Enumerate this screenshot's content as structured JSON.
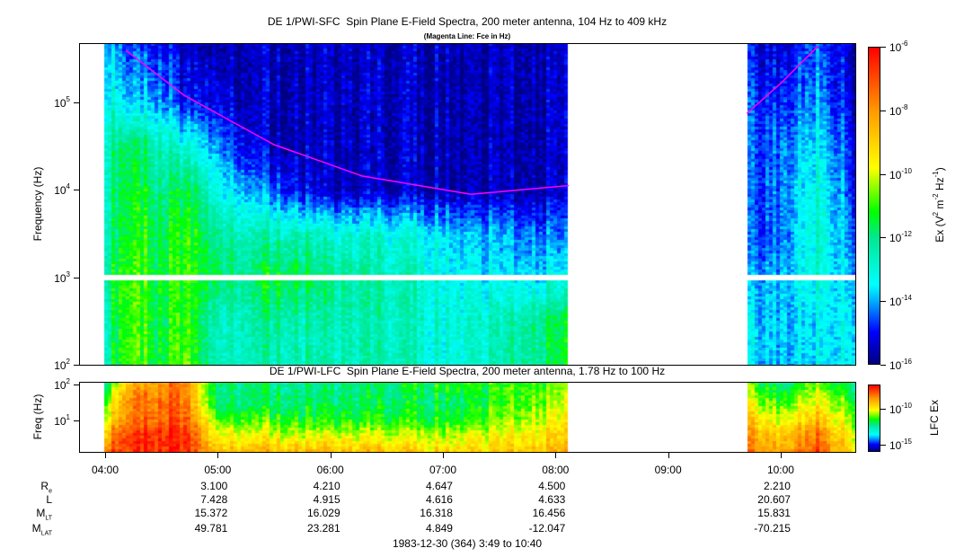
{
  "chart_data": [
    {
      "type": "heatmap",
      "title": "DE 1/PWI-SFC  Spin Plane E-Field Spectra, 200 meter antenna, 104 Hz to 409 kHz",
      "subtitle": "(Magenta Line: Fce in Hz)",
      "xlim": [
        "03:49",
        "10:40"
      ],
      "ylabel": "Frequency (Hz)",
      "yscale": "log",
      "ylim": [
        100,
        480000
      ],
      "yticks": [
        {
          "base": "10",
          "exp": "2",
          "value": 100
        },
        {
          "base": "10",
          "exp": "3",
          "value": 1000
        },
        {
          "base": "10",
          "exp": "4",
          "value": 10000
        },
        {
          "base": "10",
          "exp": "5",
          "value": 100000
        }
      ],
      "colorbar": {
        "label_parts": [
          {
            "t": "Ex (V"
          },
          {
            "sup": "2"
          },
          {
            "t": " m"
          },
          {
            "sup": "-2"
          },
          {
            "t": " Hz"
          },
          {
            "sup": "-1"
          },
          {
            "t": ")"
          }
        ],
        "scale": "log",
        "range_log10": [
          -16,
          -6
        ],
        "ticks": [
          {
            "base": "10",
            "exp": "-6",
            "value_log10": -6
          },
          {
            "base": "10",
            "exp": "-8",
            "value_log10": -8
          },
          {
            "base": "10",
            "exp": "-10",
            "value_log10": -10
          },
          {
            "base": "10",
            "exp": "-12",
            "value_log10": -12
          },
          {
            "base": "10",
            "exp": "-14",
            "value_log10": -14
          },
          {
            "base": "10",
            "exp": "-16",
            "value_log10": -16
          }
        ]
      },
      "data_segments": [
        [
          "04:00",
          "08:07"
        ],
        [
          "09:42",
          "10:40"
        ]
      ],
      "freq_gap_log10": [
        2.97,
        3.04
      ],
      "grid_log10_freq": [
        2,
        2.5,
        3,
        3.5,
        4,
        4.5,
        5,
        5.7
      ],
      "grid_columns": [
        {
          "t": "04:00",
          "v": [
            -12.5,
            -12.5,
            -12,
            -12.5,
            -12.5,
            -12.5,
            -13,
            -13.5
          ]
        },
        {
          "t": "04:12",
          "v": [
            -10.5,
            -10.5,
            -10.5,
            -11,
            -11,
            -11.5,
            -13.5,
            -14.5
          ]
        },
        {
          "t": "04:30",
          "v": [
            -11.5,
            -11.5,
            -11.5,
            -11.5,
            -12,
            -12.5,
            -14,
            -15
          ]
        },
        {
          "t": "04:42",
          "v": [
            -10.5,
            -11,
            -11,
            -11,
            -11.5,
            -13,
            -15,
            -15.5
          ]
        },
        {
          "t": "05:00",
          "v": [
            -12.5,
            -12.5,
            -11.5,
            -12,
            -13,
            -14,
            -15,
            -15.5
          ]
        },
        {
          "t": "05:15",
          "v": [
            -12.5,
            -12.5,
            -12,
            -12.5,
            -14,
            -15,
            -15.5,
            -15.5
          ]
        },
        {
          "t": "05:30",
          "v": [
            -12.5,
            -12,
            -11.3,
            -12.5,
            -14.5,
            -15.5,
            -15.5,
            -15.5
          ]
        },
        {
          "t": "05:45",
          "v": [
            -12.5,
            -12.5,
            -11.5,
            -12.5,
            -15,
            -15.5,
            -15.5,
            -15.5
          ]
        },
        {
          "t": "06:00",
          "v": [
            -12.5,
            -12.5,
            -12,
            -13,
            -15.5,
            -15.5,
            -15.5,
            -15.5
          ]
        },
        {
          "t": "06:30",
          "v": [
            -12.5,
            -12.5,
            -12.5,
            -13,
            -15.5,
            -15.5,
            -15.5,
            -15.5
          ]
        },
        {
          "t": "07:00",
          "v": [
            -13,
            -13,
            -13,
            -13.5,
            -15.5,
            -15.5,
            -15.5,
            -15.5
          ]
        },
        {
          "t": "07:30",
          "v": [
            -12.5,
            -12.5,
            -13.5,
            -14,
            -15.5,
            -15.5,
            -15.5,
            -15.5
          ]
        },
        {
          "t": "08:07",
          "v": [
            -11.5,
            -11.5,
            -13.5,
            -14.5,
            -15.5,
            -15.5,
            -15.5,
            -15.5
          ]
        },
        {
          "t": "09:42",
          "v": [
            -13.5,
            -13.5,
            -14,
            -14.5,
            -14.5,
            -14.5,
            -14.5,
            -15
          ]
        },
        {
          "t": "10:00",
          "v": [
            -14,
            -14,
            -14,
            -14.5,
            -14.5,
            -14.5,
            -15,
            -15.5
          ]
        },
        {
          "t": "10:20",
          "v": [
            -13.5,
            -13.5,
            -13,
            -12.8,
            -13,
            -13.5,
            -14,
            -14.5
          ]
        },
        {
          "t": "10:40",
          "v": [
            -13.5,
            -13.5,
            -14,
            -14.5,
            -15,
            -15,
            -15.5,
            -15.5
          ]
        }
      ],
      "fce_line": {
        "color": "#ff00ff",
        "segments": [
          [
            {
              "t": "04:11",
              "f": 395000
            },
            {
              "t": "04:42",
              "f": 121000
            },
            {
              "t": "05:30",
              "f": 32900
            },
            {
              "t": "06:17",
              "f": 14400
            },
            {
              "t": "07:15",
              "f": 8900
            },
            {
              "t": "08:07",
              "f": 11200
            }
          ],
          [
            {
              "t": "09:42",
              "f": 75000
            },
            {
              "t": "10:01",
              "f": 173000
            },
            {
              "t": "10:20",
              "f": 443000
            }
          ]
        ]
      }
    },
    {
      "type": "heatmap",
      "title": "DE 1/PWI-LFC  Spin Plane E-Field Spectra, 200 meter antenna, 1.78 Hz to 100 Hz",
      "xlim": [
        "03:49",
        "10:40"
      ],
      "ylabel": "Freq (Hz)",
      "yscale": "log",
      "ylim": [
        1.33,
        119
      ],
      "yticks": [
        {
          "base": "10",
          "exp": "1",
          "value": 10
        },
        {
          "base": "10",
          "exp": "2",
          "value": 100
        }
      ],
      "colorbar": {
        "label": "LFC Ex",
        "scale": "log",
        "range_log10": [
          -16,
          -6.6
        ],
        "ticks": [
          {
            "base": "10",
            "exp": "-10",
            "value_log10": -10
          },
          {
            "base": "10",
            "exp": "-15",
            "value_log10": -15
          }
        ]
      },
      "data_segments": [
        [
          "04:00",
          "08:07"
        ],
        [
          "09:42",
          "10:40"
        ]
      ],
      "grid_log10_freq": [
        0.12,
        0.6,
        1,
        1.5,
        2.08
      ],
      "grid_columns": [
        {
          "t": "04:00",
          "v": [
            -8,
            -9,
            -10,
            -11,
            -12
          ]
        },
        {
          "t": "04:12",
          "v": [
            -7,
            -7,
            -8,
            -8,
            -9
          ]
        },
        {
          "t": "04:42",
          "v": [
            -7,
            -7,
            -7.5,
            -8,
            -8
          ]
        },
        {
          "t": "05:00",
          "v": [
            -9,
            -10,
            -11,
            -12,
            -12
          ]
        },
        {
          "t": "06:00",
          "v": [
            -9,
            -10.5,
            -11.5,
            -12,
            -12.5
          ]
        },
        {
          "t": "07:00",
          "v": [
            -9.5,
            -10.5,
            -11.5,
            -12,
            -11.5
          ]
        },
        {
          "t": "08:07",
          "v": [
            -9,
            -9.5,
            -10,
            -10.5,
            -11
          ]
        },
        {
          "t": "09:42",
          "v": [
            -8,
            -8.5,
            -9,
            -10,
            -11
          ]
        },
        {
          "t": "10:00",
          "v": [
            -9,
            -9.5,
            -10.5,
            -11.5,
            -12.5
          ]
        },
        {
          "t": "10:20",
          "v": [
            -7.5,
            -8,
            -9,
            -10,
            -11
          ]
        },
        {
          "t": "10:40",
          "v": [
            -10,
            -10.5,
            -11,
            -11.5,
            -12.5
          ]
        }
      ]
    }
  ],
  "colormap": [
    [
      "0",
      "#000080"
    ],
    [
      "0.1",
      "#0000ff"
    ],
    [
      "0.2",
      "#00b0ff"
    ],
    [
      "0.25",
      "#00ffff"
    ],
    [
      "0.4",
      "#00e890"
    ],
    [
      "0.48",
      "#00ff00"
    ],
    [
      "0.62",
      "#ffff00"
    ],
    [
      "0.8",
      "#ff9900"
    ],
    [
      "1",
      "#ff0000"
    ]
  ],
  "time_axis": {
    "ticks": [
      "04:00",
      "05:00",
      "06:00",
      "07:00",
      "08:00",
      "09:00",
      "10:00"
    ]
  },
  "orbit_table": {
    "rows": [
      {
        "label": "R",
        "sub": "e",
        "values": {
          "05:00": "3.100",
          "06:00": "4.210",
          "07:00": "4.647",
          "08:00": "4.500",
          "10:00": "2.210"
        }
      },
      {
        "label": "L",
        "sub": "",
        "values": {
          "05:00": "7.428",
          "06:00": "4.915",
          "07:00": "4.616",
          "08:00": "4.633",
          "10:00": "20.607"
        }
      },
      {
        "label": "M",
        "sub": "LT",
        "values": {
          "05:00": "15.372",
          "06:00": "16.029",
          "07:00": "16.318",
          "08:00": "16.456",
          "10:00": "15.831"
        }
      },
      {
        "label": "M",
        "sub": "LAT",
        "values": {
          "05:00": "49.781",
          "06:00": "23.281",
          "07:00": "4.849",
          "08:00": "-12.047",
          "10:00": "-70.215"
        }
      }
    ]
  },
  "footer": "1983-12-30 (364) 3:49 to 10:40"
}
